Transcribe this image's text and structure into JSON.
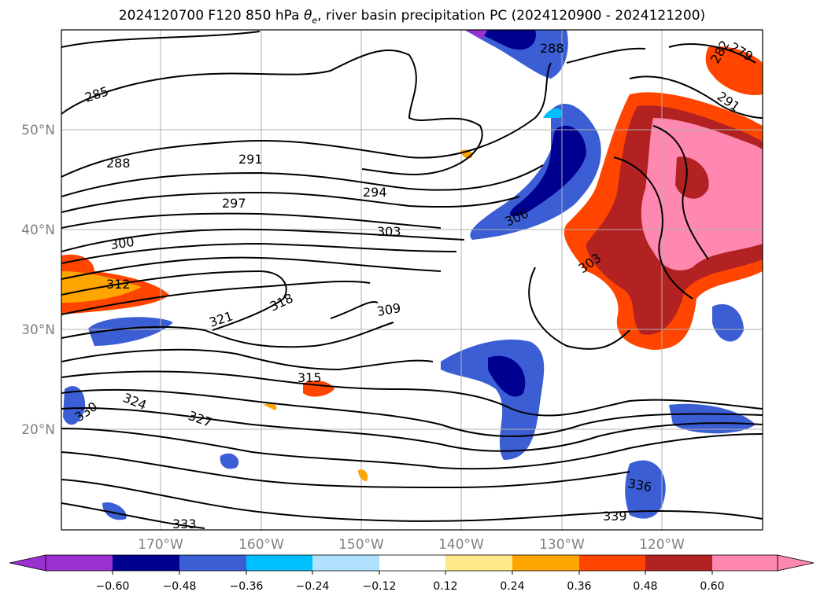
{
  "title": {
    "prefix": "2024120700 F120 850 hPa ",
    "theta": "θ",
    "theta_sub": "e",
    "suffix": ", river basin precipitation PC (2024120900 - 2024121200)"
  },
  "axes": {
    "lat_labels": [
      "50°N",
      "40°N",
      "30°N",
      "20°N"
    ],
    "lon_labels": [
      "170°W",
      "160°W",
      "150°W",
      "140°W",
      "130°W",
      "120°W"
    ],
    "label_color": "#808080",
    "gridlines": true
  },
  "contour_labels": [
    "285",
    "288",
    "291",
    "294",
    "297",
    "300",
    "303",
    "306",
    "309",
    "312",
    "315",
    "318",
    "321",
    "324",
    "327",
    "330",
    "333",
    "336",
    "339",
    "279",
    "282",
    "291",
    "303",
    "288"
  ],
  "colorbar": {
    "tick_labels": [
      "−0.60",
      "−0.48",
      "−0.36",
      "−0.24",
      "−0.12",
      "0.12",
      "0.24",
      "0.36",
      "0.48",
      "0.60"
    ],
    "colors": [
      "#9b30d0",
      "#000090",
      "#3b5ed4",
      "#00bfff",
      "#b0e2ff",
      "#ffffff",
      "#ffe88a",
      "#ffa500",
      "#ff4500",
      "#b22222",
      "#ff88b0"
    ],
    "extend": "both"
  }
}
